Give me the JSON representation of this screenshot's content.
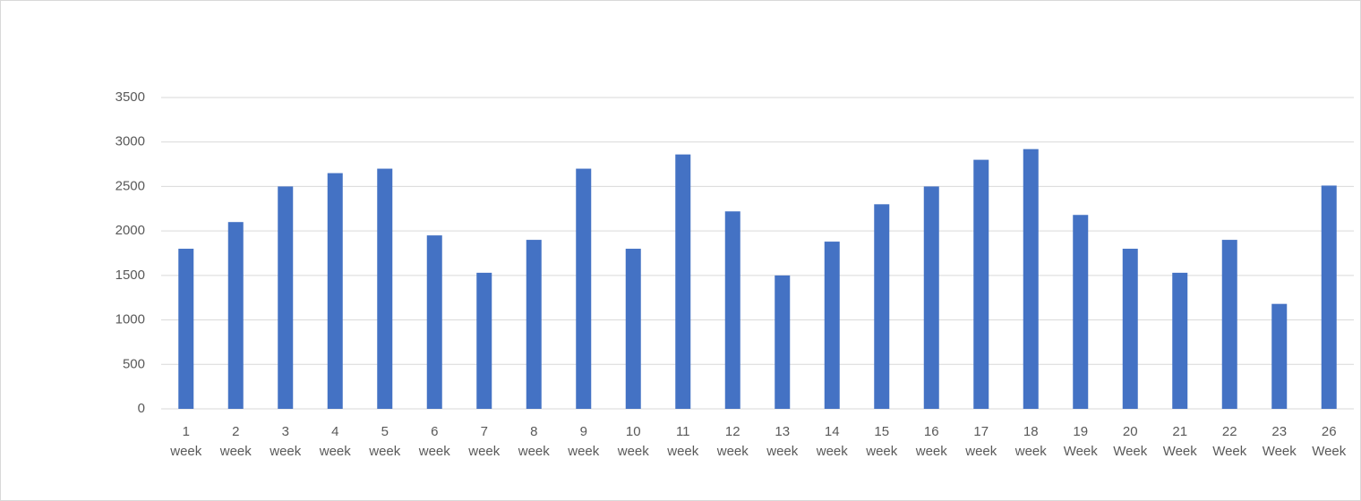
{
  "chart_data": {
    "type": "bar",
    "categories": [
      "1\nweek",
      "2\nweek",
      "3\nweek",
      "4\nweek",
      "5\nweek",
      "6\nweek",
      "7\nweek",
      "8\nweek",
      "9\nweek",
      "10\nweek",
      "11\nweek",
      "12\nweek",
      "13\nweek",
      "14\nweek",
      "15\nweek",
      "16\nweek",
      "17\nweek",
      "18\nweek",
      "19\nWeek",
      "20\nWeek",
      "21\nWeek",
      "22\nWeek",
      "23\nWeek",
      "26\nWeek"
    ],
    "values": [
      1800,
      2100,
      2500,
      2650,
      2700,
      1950,
      1530,
      1900,
      2700,
      1800,
      2860,
      2220,
      1500,
      1880,
      2300,
      2500,
      2800,
      2920,
      2180,
      1800,
      1530,
      1900,
      1180,
      2510
    ],
    "color": "#4472c4",
    "ylim": [
      0,
      3500
    ],
    "yticks": [
      0,
      500,
      1000,
      1500,
      2000,
      2500,
      3000,
      3500
    ],
    "grid": true
  }
}
